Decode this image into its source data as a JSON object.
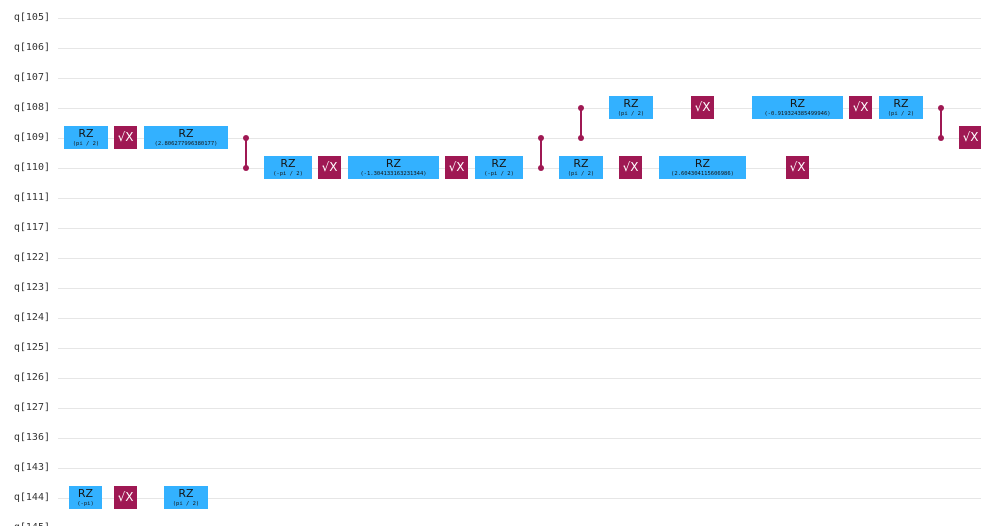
{
  "qubits": [
    "q[105]",
    "q[106]",
    "q[107]",
    "q[108]",
    "q[109]",
    "q[110]",
    "q[111]",
    "q[117]",
    "q[122]",
    "q[123]",
    "q[124]",
    "q[125]",
    "q[126]",
    "q[127]",
    "q[136]",
    "q[143]",
    "q[144]",
    "q[145]"
  ],
  "colors": {
    "rz": "#33b1ff",
    "sx": "#9f1853",
    "cz": "#9f1853",
    "wire": "#e6e6e6"
  },
  "gates": [
    {
      "type": "rz",
      "label": "RZ",
      "param": "(pi / 2)",
      "qubit": 4
    },
    {
      "type": "sx",
      "label": "√X",
      "qubit": 4
    },
    {
      "type": "rz",
      "label": "RZ",
      "param": "(2.806277996380177)",
      "qubit": 4
    },
    {
      "type": "cz",
      "qubits": [
        4,
        5
      ]
    },
    {
      "type": "rz",
      "label": "RZ",
      "param": "(-pi / 2)",
      "qubit": 5
    },
    {
      "type": "sx",
      "label": "√X",
      "qubit": 5
    },
    {
      "type": "rz",
      "label": "RZ",
      "param": "(-1.304133163231344)",
      "qubit": 5
    },
    {
      "type": "sx",
      "label": "√X",
      "qubit": 5
    },
    {
      "type": "rz",
      "label": "RZ",
      "param": "(-pi / 2)",
      "qubit": 5
    },
    {
      "type": "cz",
      "qubits": [
        4,
        5
      ]
    },
    {
      "type": "cz",
      "qubits": [
        3,
        4
      ]
    },
    {
      "type": "rz",
      "label": "RZ",
      "param": "(pi / 2)",
      "qubit": 5
    },
    {
      "type": "rz",
      "label": "RZ",
      "param": "(pi / 2)",
      "qubit": 3
    },
    {
      "type": "sx",
      "label": "√X",
      "qubit": 5
    },
    {
      "type": "sx",
      "label": "√X",
      "qubit": 3
    },
    {
      "type": "rz",
      "label": "RZ",
      "param": "(2.604304115606986)",
      "qubit": 5
    },
    {
      "type": "rz",
      "label": "RZ",
      "param": "(-0.919324385499946)",
      "qubit": 3
    },
    {
      "type": "sx",
      "label": "√X",
      "qubit": 5
    },
    {
      "type": "sx",
      "label": "√X",
      "qubit": 3
    },
    {
      "type": "rz",
      "label": "RZ",
      "param": "(pi / 2)",
      "qubit": 3
    },
    {
      "type": "cz",
      "qubits": [
        3,
        4
      ]
    },
    {
      "type": "sx",
      "label": "√X",
      "qubit": 4
    },
    {
      "type": "rz",
      "label": "RZ",
      "param": "(-pi)",
      "qubit": 16
    },
    {
      "type": "sx",
      "label": "√X",
      "qubit": 16
    },
    {
      "type": "rz",
      "label": "RZ",
      "param": "(pi / 2)",
      "qubit": 16
    }
  ]
}
